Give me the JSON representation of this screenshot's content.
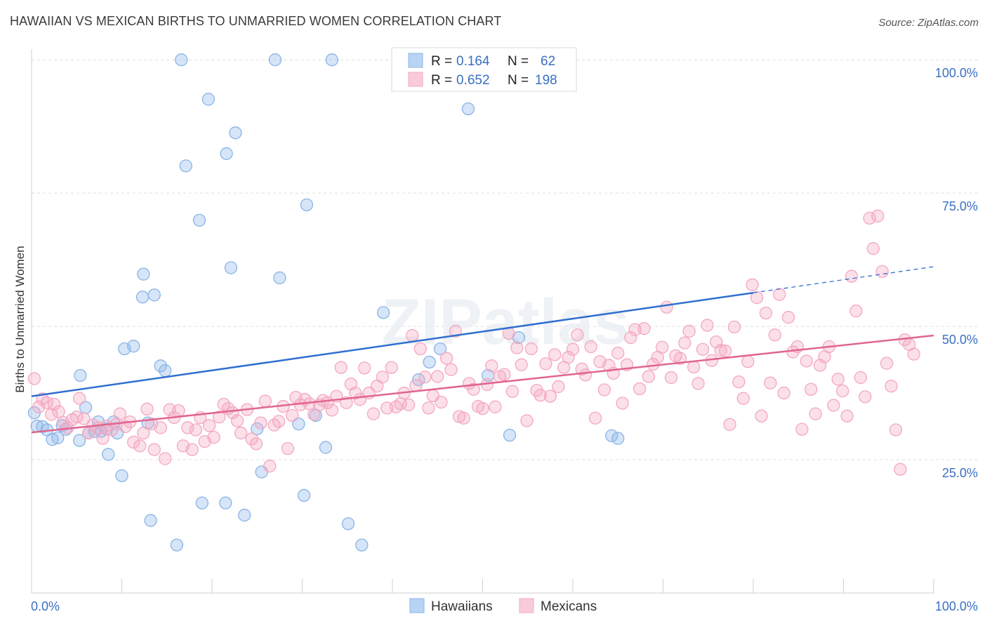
{
  "header": {
    "title": "HAWAIIAN VS MEXICAN BIRTHS TO UNMARRIED WOMEN CORRELATION CHART",
    "source": "Source: ZipAtlas.com"
  },
  "watermark": "ZIPatlas",
  "chart_data": {
    "type": "scatter",
    "title": "HAWAIIAN VS MEXICAN BIRTHS TO UNMARRIED WOMEN CORRELATION CHART",
    "ylabel": "Births to Unmarried Women",
    "xlim": [
      0,
      100
    ],
    "ylim": [
      0,
      102
    ],
    "x_tick_labels": {
      "left": "0.0%",
      "right": "100.0%"
    },
    "y_ticks": [
      {
        "value": 25,
        "label": "25.0%"
      },
      {
        "value": 50,
        "label": "50.0%"
      },
      {
        "value": 75,
        "label": "75.0%"
      },
      {
        "value": 100,
        "label": "100.0%"
      }
    ],
    "grid": true,
    "legend_position": "top-center",
    "series": [
      {
        "name": "Hawaiians",
        "color": "#8ab4e8",
        "line_color": "#2f6fd1",
        "r_label": "R = ",
        "r_value": "0.164",
        "n_label": "N = ",
        "n_value": "62",
        "trend": {
          "x0": 0,
          "y0": 36.9,
          "x1": 80,
          "y1": 56.3,
          "dash_to_x": 100,
          "dash_to_y": 61.2
        },
        "points": [
          [
            0.3,
            33.8
          ],
          [
            0.6,
            31.3
          ],
          [
            1.2,
            31.2
          ],
          [
            1.7,
            30.6
          ],
          [
            2.3,
            28.8
          ],
          [
            2.9,
            29.1
          ],
          [
            3.4,
            31.4
          ],
          [
            3.8,
            30.7
          ],
          [
            5.3,
            28.6
          ],
          [
            5.4,
            40.8
          ],
          [
            6.0,
            34.8
          ],
          [
            6.3,
            30.0
          ],
          [
            7.0,
            30.3
          ],
          [
            7.4,
            32.1
          ],
          [
            7.7,
            30.3
          ],
          [
            8.3,
            30.8
          ],
          [
            8.5,
            26.0
          ],
          [
            9.1,
            32.1
          ],
          [
            9.5,
            30.0
          ],
          [
            10.0,
            22.0
          ],
          [
            10.3,
            45.8
          ],
          [
            11.3,
            46.3
          ],
          [
            12.3,
            55.5
          ],
          [
            12.4,
            59.8
          ],
          [
            12.9,
            31.9
          ],
          [
            13.2,
            13.6
          ],
          [
            13.6,
            55.9
          ],
          [
            14.3,
            42.6
          ],
          [
            14.8,
            41.7
          ],
          [
            16.1,
            9.0
          ],
          [
            16.6,
            100.0
          ],
          [
            17.1,
            80.1
          ],
          [
            18.6,
            69.9
          ],
          [
            18.9,
            16.9
          ],
          [
            19.6,
            92.6
          ],
          [
            21.5,
            16.9
          ],
          [
            21.6,
            82.4
          ],
          [
            22.1,
            61.0
          ],
          [
            22.6,
            86.3
          ],
          [
            23.6,
            14.6
          ],
          [
            25.0,
            30.8
          ],
          [
            25.5,
            22.7
          ],
          [
            27.0,
            100.0
          ],
          [
            27.5,
            59.1
          ],
          [
            29.6,
            31.7
          ],
          [
            30.2,
            18.3
          ],
          [
            30.5,
            72.8
          ],
          [
            31.5,
            33.3
          ],
          [
            32.6,
            27.3
          ],
          [
            33.3,
            100.0
          ],
          [
            35.1,
            13.0
          ],
          [
            36.6,
            9.0
          ],
          [
            39.0,
            52.6
          ],
          [
            42.9,
            40.0
          ],
          [
            44.1,
            43.3
          ],
          [
            45.3,
            45.8
          ],
          [
            48.4,
            90.8
          ],
          [
            50.6,
            40.8
          ],
          [
            53.0,
            29.6
          ],
          [
            54.0,
            47.9
          ],
          [
            64.3,
            29.5
          ],
          [
            65.0,
            29.0
          ]
        ]
      },
      {
        "name": "Mexicans",
        "color": "#f4a7c0",
        "line_color": "#e0658f",
        "r_label": "R = ",
        "r_value": "0.652",
        "n_label": "N = ",
        "n_value": "198",
        "trend": {
          "x0": 0,
          "y0": 30.1,
          "x1": 100,
          "y1": 48.3
        },
        "points": [
          [
            0.3,
            40.2
          ],
          [
            0.8,
            34.9
          ],
          [
            1.2,
            36.4
          ],
          [
            1.7,
            35.7
          ],
          [
            2.2,
            33.5
          ],
          [
            2.5,
            35.4
          ],
          [
            3.0,
            34.0
          ],
          [
            3.5,
            32.0
          ],
          [
            4.0,
            31.0
          ],
          [
            4.5,
            32.5
          ],
          [
            5.0,
            33.0
          ],
          [
            5.3,
            36.5
          ],
          [
            5.8,
            32.7
          ],
          [
            6.3,
            30.0
          ],
          [
            6.8,
            31.5
          ],
          [
            7.4,
            31.0
          ],
          [
            7.9,
            29.0
          ],
          [
            8.3,
            31.3
          ],
          [
            8.9,
            30.6
          ],
          [
            9.4,
            31.7
          ],
          [
            9.8,
            33.6
          ],
          [
            10.4,
            31.2
          ],
          [
            10.9,
            32.1
          ],
          [
            11.3,
            28.3
          ],
          [
            12.0,
            27.6
          ],
          [
            12.4,
            30.0
          ],
          [
            12.8,
            34.5
          ],
          [
            13.3,
            31.7
          ],
          [
            13.6,
            26.9
          ],
          [
            14.3,
            31.0
          ],
          [
            14.8,
            25.2
          ],
          [
            15.3,
            34.4
          ],
          [
            15.8,
            32.9
          ],
          [
            16.3,
            34.2
          ],
          [
            16.8,
            27.6
          ],
          [
            17.3,
            31.0
          ],
          [
            17.8,
            26.9
          ],
          [
            18.2,
            30.6
          ],
          [
            18.7,
            32.9
          ],
          [
            19.2,
            28.4
          ],
          [
            19.7,
            31.4
          ],
          [
            20.2,
            29.2
          ],
          [
            20.8,
            33.0
          ],
          [
            21.3,
            35.4
          ],
          [
            21.8,
            34.6
          ],
          [
            22.3,
            33.8
          ],
          [
            22.8,
            32.3
          ],
          [
            23.2,
            30.0
          ],
          [
            23.9,
            34.4
          ],
          [
            24.4,
            28.9
          ],
          [
            24.9,
            28.0
          ],
          [
            25.4,
            31.9
          ],
          [
            25.9,
            36.0
          ],
          [
            26.4,
            23.8
          ],
          [
            26.9,
            31.5
          ],
          [
            27.4,
            32.2
          ],
          [
            27.9,
            35.0
          ],
          [
            28.4,
            27.1
          ],
          [
            28.9,
            33.3
          ],
          [
            29.3,
            36.7
          ],
          [
            29.8,
            35.3
          ],
          [
            30.3,
            36.3
          ],
          [
            30.8,
            35.5
          ],
          [
            31.3,
            33.5
          ],
          [
            31.9,
            35.3
          ],
          [
            32.3,
            36.1
          ],
          [
            32.8,
            35.7
          ],
          [
            33.3,
            34.3
          ],
          [
            33.8,
            36.9
          ],
          [
            34.3,
            42.3
          ],
          [
            34.9,
            35.7
          ],
          [
            35.4,
            39.2
          ],
          [
            35.9,
            37.5
          ],
          [
            36.4,
            36.3
          ],
          [
            36.9,
            42.2
          ],
          [
            37.4,
            37.5
          ],
          [
            37.9,
            33.6
          ],
          [
            38.3,
            38.8
          ],
          [
            38.9,
            40.5
          ],
          [
            39.4,
            34.7
          ],
          [
            39.9,
            42.3
          ],
          [
            40.4,
            34.9
          ],
          [
            40.9,
            35.5
          ],
          [
            41.3,
            37.5
          ],
          [
            41.8,
            35.3
          ],
          [
            42.2,
            48.3
          ],
          [
            42.6,
            38.9
          ],
          [
            43.1,
            45.8
          ],
          [
            43.6,
            40.5
          ],
          [
            44.0,
            34.7
          ],
          [
            44.5,
            37.0
          ],
          [
            45.0,
            40.6
          ],
          [
            45.4,
            35.8
          ],
          [
            46.0,
            44.0
          ],
          [
            46.5,
            41.9
          ],
          [
            47.0,
            49.1
          ],
          [
            47.4,
            33.1
          ],
          [
            47.9,
            32.8
          ],
          [
            48.5,
            39.3
          ],
          [
            49.0,
            38.2
          ],
          [
            49.5,
            35.0
          ],
          [
            50.0,
            34.6
          ],
          [
            50.5,
            39.1
          ],
          [
            51.0,
            42.6
          ],
          [
            51.4,
            34.9
          ],
          [
            51.9,
            40.6
          ],
          [
            52.4,
            41.0
          ],
          [
            52.9,
            48.7
          ],
          [
            53.3,
            37.8
          ],
          [
            53.8,
            46.0
          ],
          [
            54.3,
            42.8
          ],
          [
            54.9,
            32.3
          ],
          [
            55.4,
            45.8
          ],
          [
            56.0,
            38.0
          ],
          [
            56.4,
            37.1
          ],
          [
            57.0,
            43.0
          ],
          [
            57.5,
            36.9
          ],
          [
            58.0,
            44.7
          ],
          [
            58.4,
            38.7
          ],
          [
            59.0,
            42.3
          ],
          [
            59.5,
            44.2
          ],
          [
            60.0,
            45.7
          ],
          [
            60.5,
            48.4
          ],
          [
            61.0,
            42.0
          ],
          [
            61.4,
            40.9
          ],
          [
            62.0,
            46.2
          ],
          [
            62.5,
            32.8
          ],
          [
            63.0,
            43.4
          ],
          [
            63.5,
            38.1
          ],
          [
            64.0,
            42.7
          ],
          [
            64.5,
            41.2
          ],
          [
            65.0,
            45.0
          ],
          [
            65.5,
            35.6
          ],
          [
            66.0,
            42.8
          ],
          [
            66.4,
            47.9
          ],
          [
            66.9,
            49.4
          ],
          [
            67.4,
            38.3
          ],
          [
            67.9,
            49.6
          ],
          [
            68.4,
            40.6
          ],
          [
            68.9,
            42.9
          ],
          [
            69.4,
            44.2
          ],
          [
            69.9,
            46.1
          ],
          [
            70.4,
            53.6
          ],
          [
            70.9,
            40.4
          ],
          [
            71.4,
            44.5
          ],
          [
            71.9,
            44.0
          ],
          [
            72.4,
            46.9
          ],
          [
            72.9,
            49.1
          ],
          [
            73.4,
            42.4
          ],
          [
            73.9,
            39.3
          ],
          [
            74.4,
            45.7
          ],
          [
            74.9,
            50.2
          ],
          [
            75.4,
            43.6
          ],
          [
            75.9,
            47.1
          ],
          [
            76.4,
            45.5
          ],
          [
            76.9,
            45.4
          ],
          [
            77.4,
            31.6
          ],
          [
            77.9,
            49.9
          ],
          [
            78.4,
            39.6
          ],
          [
            78.9,
            36.5
          ],
          [
            79.4,
            43.4
          ],
          [
            79.9,
            57.8
          ],
          [
            80.4,
            55.4
          ],
          [
            80.9,
            33.2
          ],
          [
            81.4,
            52.5
          ],
          [
            81.9,
            39.4
          ],
          [
            82.4,
            48.4
          ],
          [
            82.9,
            56.0
          ],
          [
            83.4,
            37.5
          ],
          [
            83.9,
            51.7
          ],
          [
            84.4,
            45.2
          ],
          [
            84.9,
            46.2
          ],
          [
            85.4,
            30.7
          ],
          [
            85.9,
            43.5
          ],
          [
            86.4,
            38.2
          ],
          [
            86.9,
            33.6
          ],
          [
            87.4,
            42.7
          ],
          [
            87.9,
            44.3
          ],
          [
            88.4,
            46.2
          ],
          [
            88.9,
            35.2
          ],
          [
            89.4,
            40.1
          ],
          [
            89.9,
            37.9
          ],
          [
            90.4,
            33.2
          ],
          [
            90.9,
            59.4
          ],
          [
            91.4,
            52.9
          ],
          [
            91.9,
            40.4
          ],
          [
            92.4,
            36.8
          ],
          [
            92.9,
            70.3
          ],
          [
            93.3,
            64.6
          ],
          [
            93.8,
            70.7
          ],
          [
            94.3,
            60.3
          ],
          [
            94.8,
            43.1
          ],
          [
            95.3,
            38.8
          ],
          [
            95.8,
            30.6
          ],
          [
            96.3,
            23.2
          ],
          [
            96.8,
            47.5
          ],
          [
            97.3,
            46.6
          ],
          [
            97.8,
            44.8
          ]
        ]
      }
    ]
  }
}
